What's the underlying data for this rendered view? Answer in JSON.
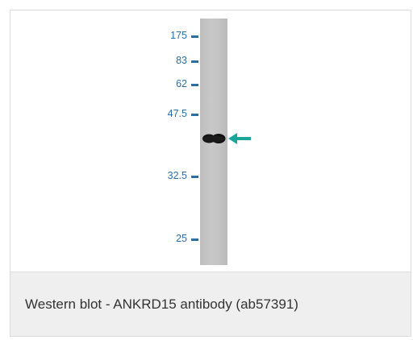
{
  "figure": {
    "markers": [
      {
        "label": "175"
      },
      {
        "label": "83"
      },
      {
        "label": "62"
      },
      {
        "label": "47.5"
      },
      {
        "label": "32.5"
      },
      {
        "label": "25"
      }
    ],
    "accent_color": "#1aa79a",
    "marker_color": "#2a6ea8"
  },
  "caption": {
    "text": "Western blot - ANKRD15 antibody (ab57391)"
  }
}
